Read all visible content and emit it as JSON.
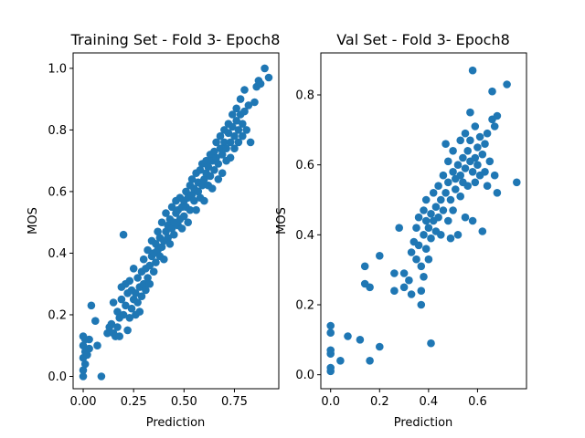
{
  "chart_data": [
    {
      "type": "scatter",
      "title": "Training Set - Fold 3- Epoch8",
      "xlabel": "Prediction",
      "ylabel": "MOS",
      "xlim": [
        -0.05,
        0.97
      ],
      "ylim": [
        -0.04,
        1.05
      ],
      "xticks": [
        0.0,
        0.25,
        0.5,
        0.75
      ],
      "xtick_labels": [
        "0.00",
        "0.25",
        "0.50",
        "0.75"
      ],
      "yticks": [
        0.0,
        0.2,
        0.4,
        0.6,
        0.8,
        1.0
      ],
      "ytick_labels": [
        "0.0",
        "0.2",
        "0.4",
        "0.6",
        "0.8",
        "1.0"
      ],
      "color": "#1f77b4",
      "points": [
        [
          0.0,
          0.0
        ],
        [
          0.0,
          0.02
        ],
        [
          0.01,
          0.04
        ],
        [
          0.0,
          0.06
        ],
        [
          0.01,
          0.08
        ],
        [
          0.0,
          0.1
        ],
        [
          0.01,
          0.12
        ],
        [
          0.0,
          0.13
        ],
        [
          0.02,
          0.07
        ],
        [
          0.03,
          0.09
        ],
        [
          0.03,
          0.12
        ],
        [
          0.04,
          0.23
        ],
        [
          0.06,
          0.18
        ],
        [
          0.07,
          0.1
        ],
        [
          0.09,
          0.0
        ],
        [
          0.12,
          0.14
        ],
        [
          0.13,
          0.16
        ],
        [
          0.14,
          0.17
        ],
        [
          0.15,
          0.24
        ],
        [
          0.15,
          0.14
        ],
        [
          0.16,
          0.13
        ],
        [
          0.17,
          0.16
        ],
        [
          0.17,
          0.21
        ],
        [
          0.18,
          0.13
        ],
        [
          0.18,
          0.19
        ],
        [
          0.19,
          0.25
        ],
        [
          0.19,
          0.29
        ],
        [
          0.2,
          0.46
        ],
        [
          0.2,
          0.2
        ],
        [
          0.21,
          0.3
        ],
        [
          0.21,
          0.23
        ],
        [
          0.22,
          0.15
        ],
        [
          0.22,
          0.27
        ],
        [
          0.23,
          0.19
        ],
        [
          0.23,
          0.31
        ],
        [
          0.24,
          0.22
        ],
        [
          0.24,
          0.28
        ],
        [
          0.25,
          0.25
        ],
        [
          0.25,
          0.35
        ],
        [
          0.26,
          0.2
        ],
        [
          0.26,
          0.27
        ],
        [
          0.27,
          0.32
        ],
        [
          0.27,
          0.24
        ],
        [
          0.28,
          0.29
        ],
        [
          0.28,
          0.21
        ],
        [
          0.29,
          0.34
        ],
        [
          0.29,
          0.26
        ],
        [
          0.3,
          0.3
        ],
        [
          0.3,
          0.38
        ],
        [
          0.31,
          0.28
        ],
        [
          0.31,
          0.35
        ],
        [
          0.32,
          0.32
        ],
        [
          0.32,
          0.41
        ],
        [
          0.33,
          0.36
        ],
        [
          0.33,
          0.3
        ],
        [
          0.34,
          0.39
        ],
        [
          0.34,
          0.44
        ],
        [
          0.35,
          0.34
        ],
        [
          0.35,
          0.4
        ],
        [
          0.36,
          0.37
        ],
        [
          0.36,
          0.43
        ],
        [
          0.37,
          0.41
        ],
        [
          0.37,
          0.47
        ],
        [
          0.38,
          0.39
        ],
        [
          0.38,
          0.45
        ],
        [
          0.39,
          0.42
        ],
        [
          0.39,
          0.5
        ],
        [
          0.4,
          0.44
        ],
        [
          0.4,
          0.38
        ],
        [
          0.41,
          0.47
        ],
        [
          0.41,
          0.53
        ],
        [
          0.42,
          0.45
        ],
        [
          0.42,
          0.49
        ],
        [
          0.43,
          0.51
        ],
        [
          0.43,
          0.43
        ],
        [
          0.44,
          0.48
        ],
        [
          0.44,
          0.55
        ],
        [
          0.45,
          0.5
        ],
        [
          0.45,
          0.46
        ],
        [
          0.46,
          0.53
        ],
        [
          0.46,
          0.57
        ],
        [
          0.47,
          0.49
        ],
        [
          0.47,
          0.54
        ],
        [
          0.48,
          0.51
        ],
        [
          0.48,
          0.58
        ],
        [
          0.49,
          0.55
        ],
        [
          0.49,
          0.48
        ],
        [
          0.5,
          0.57
        ],
        [
          0.5,
          0.52
        ],
        [
          0.51,
          0.6
        ],
        [
          0.51,
          0.55
        ],
        [
          0.52,
          0.5
        ],
        [
          0.52,
          0.58
        ],
        [
          0.53,
          0.62
        ],
        [
          0.53,
          0.54
        ],
        [
          0.54,
          0.59
        ],
        [
          0.54,
          0.64
        ],
        [
          0.55,
          0.57
        ],
        [
          0.55,
          0.61
        ],
        [
          0.56,
          0.66
        ],
        [
          0.56,
          0.54
        ],
        [
          0.57,
          0.6
        ],
        [
          0.57,
          0.63
        ],
        [
          0.58,
          0.67
        ],
        [
          0.58,
          0.58
        ],
        [
          0.59,
          0.62
        ],
        [
          0.59,
          0.69
        ],
        [
          0.6,
          0.64
        ],
        [
          0.6,
          0.57
        ],
        [
          0.61,
          0.66
        ],
        [
          0.61,
          0.7
        ],
        [
          0.62,
          0.62
        ],
        [
          0.62,
          0.68
        ],
        [
          0.63,
          0.72
        ],
        [
          0.63,
          0.65
        ],
        [
          0.64,
          0.7
        ],
        [
          0.64,
          0.61
        ],
        [
          0.65,
          0.73
        ],
        [
          0.65,
          0.67
        ],
        [
          0.66,
          0.71
        ],
        [
          0.66,
          0.76
        ],
        [
          0.67,
          0.69
        ],
        [
          0.67,
          0.64
        ],
        [
          0.68,
          0.74
        ],
        [
          0.68,
          0.78
        ],
        [
          0.69,
          0.72
        ],
        [
          0.69,
          0.66
        ],
        [
          0.7,
          0.76
        ],
        [
          0.7,
          0.8
        ],
        [
          0.71,
          0.74
        ],
        [
          0.71,
          0.7
        ],
        [
          0.72,
          0.79
        ],
        [
          0.72,
          0.82
        ],
        [
          0.73,
          0.76
        ],
        [
          0.73,
          0.71
        ],
        [
          0.74,
          0.81
        ],
        [
          0.74,
          0.85
        ],
        [
          0.75,
          0.78
        ],
        [
          0.75,
          0.74
        ],
        [
          0.76,
          0.83
        ],
        [
          0.76,
          0.87
        ],
        [
          0.77,
          0.8
        ],
        [
          0.77,
          0.76
        ],
        [
          0.78,
          0.85
        ],
        [
          0.78,
          0.9
        ],
        [
          0.79,
          0.82
        ],
        [
          0.79,
          0.78
        ],
        [
          0.8,
          0.93
        ],
        [
          0.8,
          0.86
        ],
        [
          0.81,
          0.8
        ],
        [
          0.82,
          0.88
        ],
        [
          0.83,
          0.76
        ],
        [
          0.85,
          0.89
        ],
        [
          0.86,
          0.94
        ],
        [
          0.87,
          0.96
        ],
        [
          0.88,
          0.95
        ],
        [
          0.9,
          1.0
        ],
        [
          0.92,
          0.97
        ]
      ]
    },
    {
      "type": "scatter",
      "title": "Val Set - Fold 3- Epoch8",
      "xlabel": "Prediction",
      "ylabel": "MOS",
      "xlim": [
        -0.04,
        0.8
      ],
      "ylim": [
        -0.04,
        0.92
      ],
      "xticks": [
        0.0,
        0.2,
        0.4,
        0.6
      ],
      "xtick_labels": [
        "0.0",
        "0.2",
        "0.4",
        "0.6"
      ],
      "yticks": [
        0.0,
        0.2,
        0.4,
        0.6,
        0.8
      ],
      "ytick_labels": [
        "0.0",
        "0.2",
        "0.4",
        "0.6",
        "0.8"
      ],
      "color": "#1f77b4",
      "points": [
        [
          0.0,
          0.01
        ],
        [
          0.0,
          0.02
        ],
        [
          0.0,
          0.06
        ],
        [
          0.0,
          0.07
        ],
        [
          0.0,
          0.12
        ],
        [
          0.0,
          0.14
        ],
        [
          0.04,
          0.04
        ],
        [
          0.07,
          0.11
        ],
        [
          0.12,
          0.1
        ],
        [
          0.14,
          0.26
        ],
        [
          0.14,
          0.31
        ],
        [
          0.16,
          0.04
        ],
        [
          0.16,
          0.25
        ],
        [
          0.2,
          0.08
        ],
        [
          0.2,
          0.34
        ],
        [
          0.26,
          0.24
        ],
        [
          0.26,
          0.29
        ],
        [
          0.28,
          0.42
        ],
        [
          0.3,
          0.25
        ],
        [
          0.3,
          0.29
        ],
        [
          0.32,
          0.27
        ],
        [
          0.33,
          0.23
        ],
        [
          0.33,
          0.35
        ],
        [
          0.34,
          0.38
        ],
        [
          0.35,
          0.42
        ],
        [
          0.35,
          0.33
        ],
        [
          0.36,
          0.45
        ],
        [
          0.36,
          0.37
        ],
        [
          0.37,
          0.2
        ],
        [
          0.37,
          0.24
        ],
        [
          0.37,
          0.31
        ],
        [
          0.38,
          0.28
        ],
        [
          0.38,
          0.4
        ],
        [
          0.38,
          0.47
        ],
        [
          0.39,
          0.36
        ],
        [
          0.39,
          0.44
        ],
        [
          0.39,
          0.5
        ],
        [
          0.4,
          0.33
        ],
        [
          0.4,
          0.42
        ],
        [
          0.41,
          0.09
        ],
        [
          0.41,
          0.39
        ],
        [
          0.41,
          0.46
        ],
        [
          0.42,
          0.52
        ],
        [
          0.42,
          0.44
        ],
        [
          0.43,
          0.41
        ],
        [
          0.43,
          0.48
        ],
        [
          0.44,
          0.45
        ],
        [
          0.44,
          0.54
        ],
        [
          0.45,
          0.4
        ],
        [
          0.45,
          0.5
        ],
        [
          0.46,
          0.47
        ],
        [
          0.46,
          0.57
        ],
        [
          0.47,
          0.52
        ],
        [
          0.47,
          0.66
        ],
        [
          0.48,
          0.44
        ],
        [
          0.48,
          0.55
        ],
        [
          0.48,
          0.61
        ],
        [
          0.49,
          0.39
        ],
        [
          0.49,
          0.5
        ],
        [
          0.5,
          0.58
        ],
        [
          0.5,
          0.47
        ],
        [
          0.5,
          0.64
        ],
        [
          0.51,
          0.53
        ],
        [
          0.51,
          0.56
        ],
        [
          0.52,
          0.6
        ],
        [
          0.52,
          0.4
        ],
        [
          0.53,
          0.51
        ],
        [
          0.53,
          0.57
        ],
        [
          0.53,
          0.67
        ],
        [
          0.54,
          0.62
        ],
        [
          0.54,
          0.55
        ],
        [
          0.55,
          0.45
        ],
        [
          0.55,
          0.59
        ],
        [
          0.55,
          0.69
        ],
        [
          0.56,
          0.64
        ],
        [
          0.56,
          0.54
        ],
        [
          0.57,
          0.61
        ],
        [
          0.57,
          0.75
        ],
        [
          0.57,
          0.67
        ],
        [
          0.58,
          0.87
        ],
        [
          0.58,
          0.58
        ],
        [
          0.58,
          0.44
        ],
        [
          0.59,
          0.62
        ],
        [
          0.59,
          0.55
        ],
        [
          0.59,
          0.71
        ],
        [
          0.6,
          0.65
        ],
        [
          0.6,
          0.6
        ],
        [
          0.61,
          0.68
        ],
        [
          0.61,
          0.57
        ],
        [
          0.62,
          0.63
        ],
        [
          0.62,
          0.41
        ],
        [
          0.63,
          0.66
        ],
        [
          0.63,
          0.58
        ],
        [
          0.64,
          0.69
        ],
        [
          0.64,
          0.54
        ],
        [
          0.65,
          0.61
        ],
        [
          0.66,
          0.73
        ],
        [
          0.66,
          0.81
        ],
        [
          0.67,
          0.71
        ],
        [
          0.67,
          0.57
        ],
        [
          0.68,
          0.74
        ],
        [
          0.68,
          0.52
        ],
        [
          0.72,
          0.83
        ],
        [
          0.76,
          0.55
        ]
      ]
    }
  ]
}
